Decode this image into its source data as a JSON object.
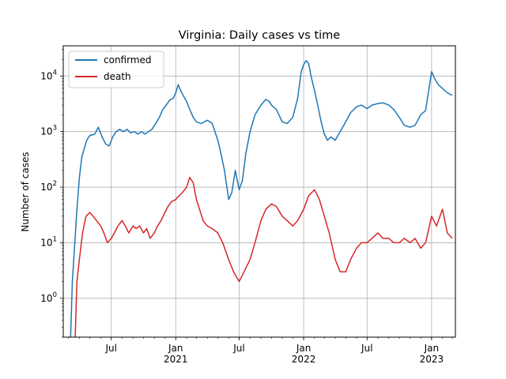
{
  "chart_data": {
    "type": "line",
    "title": "Virginia: Daily  cases vs time",
    "xlabel": "",
    "ylabel": "Number of cases",
    "yscale": "log",
    "ylim": [
      0.2,
      35000
    ],
    "xlim": [
      "2020-02-15",
      "2023-03-10"
    ],
    "grid": true,
    "legend": "top-left",
    "x_ticks": [
      {
        "date": "2020-07-01",
        "label": "Jul",
        "year": ""
      },
      {
        "date": "2021-01-01",
        "label": "Jan",
        "year": "2021"
      },
      {
        "date": "2021-07-01",
        "label": "Jul",
        "year": ""
      },
      {
        "date": "2022-01-01",
        "label": "Jan",
        "year": "2022"
      },
      {
        "date": "2022-07-01",
        "label": "Jul",
        "year": ""
      },
      {
        "date": "2023-01-01",
        "label": "Jan",
        "year": "2023"
      }
    ],
    "y_ticks": [
      {
        "value": 1,
        "base": "10",
        "exp": "0"
      },
      {
        "value": 10,
        "base": "10",
        "exp": "1"
      },
      {
        "value": 100,
        "base": "10",
        "exp": "2"
      },
      {
        "value": 1000,
        "base": "10",
        "exp": "3"
      },
      {
        "value": 10000,
        "base": "10",
        "exp": "4"
      }
    ],
    "series": [
      {
        "name": "confirmed",
        "color": "#1f77b4",
        "points": [
          [
            "2020-03-07",
            0.2
          ],
          [
            "2020-03-12",
            2
          ],
          [
            "2020-03-18",
            8
          ],
          [
            "2020-03-25",
            40
          ],
          [
            "2020-04-01",
            150
          ],
          [
            "2020-04-08",
            350
          ],
          [
            "2020-04-15",
            500
          ],
          [
            "2020-04-22",
            700
          ],
          [
            "2020-05-01",
            850
          ],
          [
            "2020-05-15",
            900
          ],
          [
            "2020-05-25",
            1200
          ],
          [
            "2020-06-05",
            800
          ],
          [
            "2020-06-15",
            600
          ],
          [
            "2020-06-25",
            550
          ],
          [
            "2020-07-05",
            800
          ],
          [
            "2020-07-15",
            1000
          ],
          [
            "2020-07-25",
            1100
          ],
          [
            "2020-08-05",
            1000
          ],
          [
            "2020-08-15",
            1100
          ],
          [
            "2020-08-25",
            950
          ],
          [
            "2020-09-05",
            1000
          ],
          [
            "2020-09-15",
            900
          ],
          [
            "2020-09-25",
            1000
          ],
          [
            "2020-10-05",
            900
          ],
          [
            "2020-10-15",
            1000
          ],
          [
            "2020-10-25",
            1100
          ],
          [
            "2020-11-05",
            1400
          ],
          [
            "2020-11-15",
            1800
          ],
          [
            "2020-11-25",
            2500
          ],
          [
            "2020-12-05",
            3000
          ],
          [
            "2020-12-15",
            3700
          ],
          [
            "2020-12-25",
            4000
          ],
          [
            "2021-01-01",
            5000
          ],
          [
            "2021-01-08",
            7000
          ],
          [
            "2021-01-15",
            5500
          ],
          [
            "2021-01-22",
            4500
          ],
          [
            "2021-02-01",
            3500
          ],
          [
            "2021-02-10",
            2500
          ],
          [
            "2021-02-20",
            1800
          ],
          [
            "2021-03-01",
            1500
          ],
          [
            "2021-03-15",
            1400
          ],
          [
            "2021-04-01",
            1600
          ],
          [
            "2021-04-15",
            1400
          ],
          [
            "2021-05-01",
            700
          ],
          [
            "2021-05-10",
            400
          ],
          [
            "2021-05-20",
            200
          ],
          [
            "2021-06-01",
            60
          ],
          [
            "2021-06-10",
            80
          ],
          [
            "2021-06-20",
            200
          ],
          [
            "2021-07-01",
            90
          ],
          [
            "2021-07-10",
            130
          ],
          [
            "2021-07-20",
            400
          ],
          [
            "2021-08-01",
            1000
          ],
          [
            "2021-08-15",
            2000
          ],
          [
            "2021-09-01",
            3000
          ],
          [
            "2021-09-15",
            3800
          ],
          [
            "2021-09-25",
            3500
          ],
          [
            "2021-10-01",
            3000
          ],
          [
            "2021-10-15",
            2500
          ],
          [
            "2021-11-01",
            1500
          ],
          [
            "2021-11-15",
            1400
          ],
          [
            "2021-12-01",
            1800
          ],
          [
            "2021-12-15",
            4000
          ],
          [
            "2021-12-25",
            12000
          ],
          [
            "2022-01-01",
            16000
          ],
          [
            "2022-01-08",
            19000
          ],
          [
            "2022-01-15",
            17000
          ],
          [
            "2022-01-22",
            10000
          ],
          [
            "2022-02-01",
            5500
          ],
          [
            "2022-02-10",
            3000
          ],
          [
            "2022-02-20",
            1500
          ],
          [
            "2022-03-01",
            900
          ],
          [
            "2022-03-10",
            700
          ],
          [
            "2022-03-20",
            800
          ],
          [
            "2022-04-01",
            700
          ],
          [
            "2022-04-15",
            1000
          ],
          [
            "2022-05-01",
            1500
          ],
          [
            "2022-05-15",
            2200
          ],
          [
            "2022-06-01",
            2800
          ],
          [
            "2022-06-15",
            3000
          ],
          [
            "2022-07-01",
            2600
          ],
          [
            "2022-07-15",
            3000
          ],
          [
            "2022-08-01",
            3200
          ],
          [
            "2022-08-15",
            3300
          ],
          [
            "2022-09-01",
            3000
          ],
          [
            "2022-09-15",
            2500
          ],
          [
            "2022-10-01",
            1800
          ],
          [
            "2022-10-15",
            1300
          ],
          [
            "2022-11-01",
            1200
          ],
          [
            "2022-11-15",
            1300
          ],
          [
            "2022-12-01",
            2000
          ],
          [
            "2022-12-15",
            2400
          ],
          [
            "2023-01-01",
            12000
          ],
          [
            "2023-01-10",
            9000
          ],
          [
            "2023-01-20",
            7000
          ],
          [
            "2023-02-01",
            6000
          ],
          [
            "2023-02-15",
            5000
          ],
          [
            "2023-03-01",
            4500
          ]
        ]
      },
      {
        "name": "death",
        "color": "#d62728",
        "points": [
          [
            "2020-03-20",
            0.2
          ],
          [
            "2020-03-25",
            2
          ],
          [
            "2020-04-01",
            5
          ],
          [
            "2020-04-10",
            15
          ],
          [
            "2020-04-20",
            30
          ],
          [
            "2020-05-01",
            35
          ],
          [
            "2020-05-10",
            30
          ],
          [
            "2020-05-20",
            25
          ],
          [
            "2020-06-01",
            20
          ],
          [
            "2020-06-10",
            15
          ],
          [
            "2020-06-20",
            10
          ],
          [
            "2020-07-01",
            12
          ],
          [
            "2020-07-10",
            15
          ],
          [
            "2020-07-20",
            20
          ],
          [
            "2020-08-01",
            25
          ],
          [
            "2020-08-10",
            20
          ],
          [
            "2020-08-20",
            15
          ],
          [
            "2020-09-01",
            20
          ],
          [
            "2020-09-10",
            18
          ],
          [
            "2020-09-20",
            20
          ],
          [
            "2020-10-01",
            15
          ],
          [
            "2020-10-10",
            18
          ],
          [
            "2020-10-20",
            12
          ],
          [
            "2020-11-01",
            15
          ],
          [
            "2020-11-10",
            20
          ],
          [
            "2020-11-20",
            25
          ],
          [
            "2020-12-01",
            35
          ],
          [
            "2020-12-10",
            45
          ],
          [
            "2020-12-20",
            55
          ],
          [
            "2021-01-01",
            60
          ],
          [
            "2021-01-10",
            70
          ],
          [
            "2021-01-20",
            80
          ],
          [
            "2021-02-01",
            100
          ],
          [
            "2021-02-10",
            150
          ],
          [
            "2021-02-20",
            120
          ],
          [
            "2021-03-01",
            60
          ],
          [
            "2021-03-10",
            40
          ],
          [
            "2021-03-20",
            25
          ],
          [
            "2021-04-01",
            20
          ],
          [
            "2021-04-15",
            18
          ],
          [
            "2021-05-01",
            15
          ],
          [
            "2021-05-15",
            10
          ],
          [
            "2021-06-01",
            5
          ],
          [
            "2021-06-15",
            3
          ],
          [
            "2021-07-01",
            2
          ],
          [
            "2021-07-15",
            3
          ],
          [
            "2021-08-01",
            5
          ],
          [
            "2021-08-15",
            10
          ],
          [
            "2021-09-01",
            25
          ],
          [
            "2021-09-15",
            40
          ],
          [
            "2021-10-01",
            50
          ],
          [
            "2021-10-15",
            45
          ],
          [
            "2021-11-01",
            30
          ],
          [
            "2021-11-15",
            25
          ],
          [
            "2021-12-01",
            20
          ],
          [
            "2021-12-15",
            25
          ],
          [
            "2022-01-01",
            40
          ],
          [
            "2022-01-15",
            70
          ],
          [
            "2022-02-01",
            90
          ],
          [
            "2022-02-15",
            60
          ],
          [
            "2022-03-01",
            30
          ],
          [
            "2022-03-15",
            15
          ],
          [
            "2022-04-01",
            5
          ],
          [
            "2022-04-15",
            3
          ],
          [
            "2022-05-01",
            3
          ],
          [
            "2022-05-15",
            5
          ],
          [
            "2022-06-01",
            8
          ],
          [
            "2022-06-15",
            10
          ],
          [
            "2022-07-01",
            10
          ],
          [
            "2022-07-15",
            12
          ],
          [
            "2022-08-01",
            15
          ],
          [
            "2022-08-15",
            12
          ],
          [
            "2022-09-01",
            12
          ],
          [
            "2022-09-15",
            10
          ],
          [
            "2022-10-01",
            10
          ],
          [
            "2022-10-15",
            12
          ],
          [
            "2022-11-01",
            10
          ],
          [
            "2022-11-15",
            12
          ],
          [
            "2022-12-01",
            8
          ],
          [
            "2022-12-15",
            10
          ],
          [
            "2023-01-01",
            30
          ],
          [
            "2023-01-15",
            20
          ],
          [
            "2023-02-01",
            40
          ],
          [
            "2023-02-15",
            15
          ],
          [
            "2023-03-01",
            12
          ]
        ]
      }
    ]
  }
}
